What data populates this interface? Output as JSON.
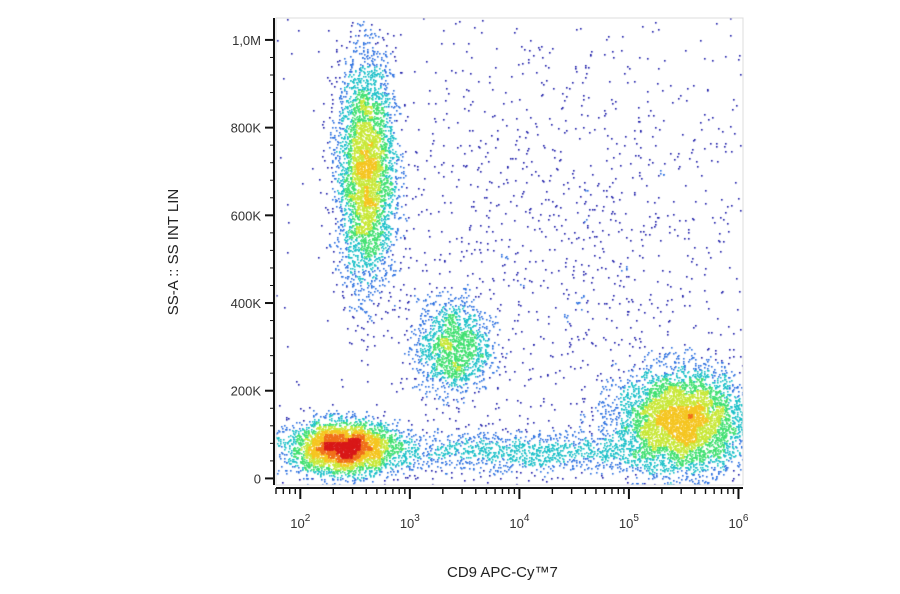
{
  "chart_data": {
    "type": "scatter",
    "title": "",
    "xlabel": "CD9 APC-Cy™7",
    "ylabel": "SS-A :: SS INT LIN",
    "x_scale": "log",
    "xlim": [
      60,
      1100000
    ],
    "ylim": [
      -15000,
      1050000
    ],
    "x_tick_labels": [
      {
        "value": 100,
        "base": "10",
        "exp": "2"
      },
      {
        "value": 1000,
        "base": "10",
        "exp": "3"
      },
      {
        "value": 10000,
        "base": "10",
        "exp": "4"
      },
      {
        "value": 100000,
        "base": "10",
        "exp": "5"
      },
      {
        "value": 1000000,
        "base": "10",
        "exp": "6"
      }
    ],
    "y_tick_labels": [
      {
        "value": 0,
        "label": "0"
      },
      {
        "value": 200000,
        "label": "200K"
      },
      {
        "value": 400000,
        "label": "400K"
      },
      {
        "value": 600000,
        "label": "600K"
      },
      {
        "value": 800000,
        "label": "800K"
      },
      {
        "value": 1000000,
        "label": "1,0M"
      }
    ],
    "grid": false,
    "legend": "none",
    "density_colormap": [
      "#1a1aa8",
      "#2a6fe0",
      "#19c0c8",
      "#3fe070",
      "#c8e838",
      "#f5c520",
      "#f07018",
      "#d81818"
    ],
    "populations": [
      {
        "x_center": 400,
        "y_center": 700000,
        "x_spread_decades": 0.13,
        "y_spread": 130000,
        "relative_size": 1.0
      },
      {
        "x_center": 250,
        "y_center": 70000,
        "x_spread_decades": 0.25,
        "y_spread": 30000,
        "relative_size": 0.9
      },
      {
        "x_center": 2500,
        "y_center": 300000,
        "x_spread_decades": 0.17,
        "y_spread": 55000,
        "relative_size": 0.35
      },
      {
        "x_center": 300000,
        "y_center": 130000,
        "x_spread_decades": 0.3,
        "y_spread": 60000,
        "relative_size": 1.2
      },
      {
        "x_center": 10000,
        "y_center": 60000,
        "x_spread_decades": 0.7,
        "y_spread": 25000,
        "relative_size": 0.3
      },
      {
        "x_center": 30000,
        "y_center": 550000,
        "x_spread_decades": 1.2,
        "y_spread": 300000,
        "relative_size": 0.35
      }
    ]
  }
}
